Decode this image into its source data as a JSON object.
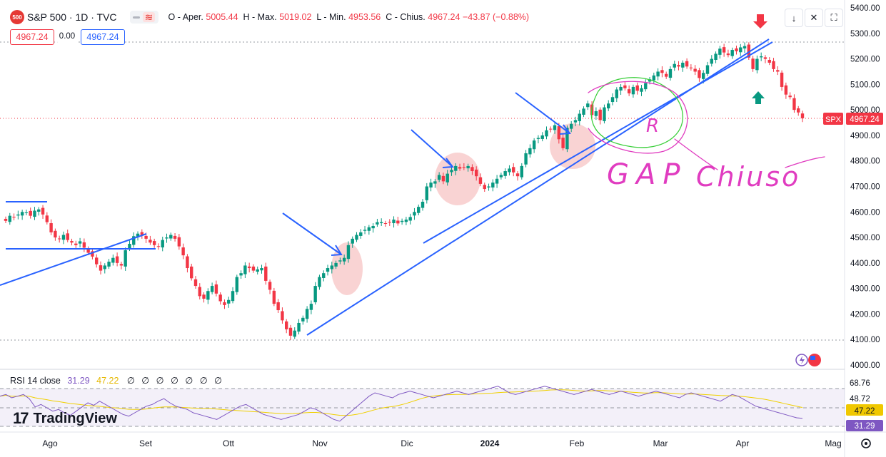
{
  "header": {
    "symbol_badge": "500",
    "symbol": "S&P 500 · 1D · TVC",
    "o_label": "O - Aper.",
    "o_val": "5005.44",
    "h_label": "H - Max.",
    "h_val": "5019.02",
    "l_label": "L - Min.",
    "l_val": "4953.56",
    "c_label": "C - Chius.",
    "c_val": "4967.24",
    "change": "−43.87 (−0.88%)",
    "sell_price": "4967.24",
    "spread": "0.00",
    "buy_price": "4967.24"
  },
  "toolbar": {
    "down_arrow": "↓",
    "collapse": "✕",
    "fullscreen": "⛶"
  },
  "colors": {
    "up": "#089981",
    "down": "#f23645",
    "trendline": "#2962ff",
    "rsi": "#7e57c2",
    "rsi_ma": "#f0d000",
    "annotation_pink": "#e03cc0",
    "annotation_green": "#3ccf3c",
    "highlight": "#f8c8c8"
  },
  "price_label": {
    "ticker": "SPX",
    "value": "4967.24"
  },
  "rsi": {
    "title": "RSI 14 close",
    "value": "31.29",
    "ma_value": "47.22",
    "zeros": "∅ ∅ ∅ ∅ ∅ ∅ ∅",
    "axis_labels": [
      "68.76",
      "48.72"
    ]
  },
  "annotations": {
    "gap_text": "GAP",
    "chiuso_text": "Chiuso",
    "r_text": "R"
  },
  "branding": {
    "name": "TradingView"
  },
  "settings_icon": "gear-icon",
  "chart_data": {
    "type": "candlestick",
    "title": "S&P 500 · 1D · TVC",
    "y_axis_labels": [
      "5400.00",
      "5300.00",
      "5200.00",
      "5100.00",
      "5000.00",
      "4900.00",
      "4800.00",
      "4700.00",
      "4600.00",
      "4500.00",
      "4400.00",
      "4300.00",
      "4200.00",
      "4100.00",
      "4000.00"
    ],
    "ylim": [
      4000,
      5400
    ],
    "x_axis_labels": [
      "Ago",
      "Set",
      "Ott",
      "Nov",
      "Dic",
      "2024",
      "Feb",
      "Mar",
      "Apr",
      "Mag"
    ],
    "last_price": 4967.24,
    "series_closes": [
      4565,
      4585,
      4580,
      4590,
      4600,
      4598,
      4585,
      4605,
      4610,
      4590,
      4560,
      4520,
      4500,
      4495,
      4510,
      4490,
      4480,
      4470,
      4485,
      4460,
      4440,
      4425,
      4395,
      4370,
      4390,
      4405,
      4420,
      4400,
      4390,
      4450,
      4475,
      4505,
      4515,
      4510,
      4495,
      4480,
      4470,
      4465,
      4490,
      4500,
      4510,
      4495,
      4465,
      4430,
      4380,
      4340,
      4310,
      4270,
      4260,
      4290,
      4310,
      4280,
      4250,
      4235,
      4255,
      4290,
      4345,
      4360,
      4390,
      4380,
      4370,
      4375,
      4380,
      4330,
      4295,
      4240,
      4215,
      4175,
      4140,
      4115,
      4135,
      4165,
      4185,
      4220,
      4240,
      4310,
      4345,
      4360,
      4380,
      4390,
      4400,
      4410,
      4420,
      4470,
      4495,
      4510,
      4520,
      4530,
      4540,
      4545,
      4560,
      4560,
      4555,
      4560,
      4570,
      4555,
      4565,
      4570,
      4580,
      4600,
      4620,
      4640,
      4700,
      4715,
      4720,
      4745,
      4720,
      4750,
      4765,
      4780,
      4770,
      4775,
      4780,
      4760,
      4740,
      4710,
      4690,
      4700,
      4715,
      4730,
      4745,
      4760,
      4770,
      4755,
      4740,
      4780,
      4830,
      4850,
      4880,
      4890,
      4900,
      4920,
      4925,
      4940,
      4885,
      4850,
      4930,
      4945,
      4960,
      4985,
      5005,
      5025,
      4980,
      4995,
      4960,
      5010,
      5025,
      5050,
      5080,
      5090,
      5085,
      5065,
      5090,
      5075,
      5085,
      5105,
      5120,
      5135,
      5150,
      5145,
      5130,
      5160,
      5180,
      5170,
      5185,
      5170,
      5165,
      5150,
      5125,
      5145,
      5175,
      5200,
      5220,
      5240,
      5225,
      5215,
      5235,
      5230,
      5245,
      5250,
      5205,
      5160,
      5200,
      5210,
      5200,
      5185,
      5160,
      5150,
      5090,
      5060,
      5050,
      5000,
      4990,
      4967.24
    ],
    "rsi_values": [
      58,
      60,
      56,
      58,
      60,
      55,
      45,
      48,
      44,
      40,
      42,
      38,
      35,
      40,
      45,
      50,
      47,
      52,
      48,
      44,
      40,
      36,
      34,
      38,
      42,
      46,
      48,
      52,
      55,
      50,
      46,
      44,
      42,
      38,
      36,
      34,
      32,
      30,
      34,
      38,
      42,
      46,
      48,
      44,
      40,
      36,
      34,
      32,
      30,
      32,
      34,
      36,
      40,
      44,
      42,
      38,
      34,
      30,
      28,
      34,
      40,
      46,
      52,
      58,
      62,
      60,
      58,
      56,
      60,
      62,
      64,
      62,
      60,
      58,
      56,
      58,
      60,
      62,
      64,
      62,
      60,
      62,
      64,
      66,
      68,
      70,
      66,
      62,
      60,
      62,
      64,
      66,
      68,
      70,
      68,
      66,
      64,
      62,
      60,
      62,
      64,
      66,
      64,
      62,
      60,
      62,
      64,
      62,
      60,
      58,
      60,
      62,
      64,
      62,
      60,
      58,
      56,
      60,
      62,
      60,
      58,
      56,
      54,
      52,
      56,
      60,
      58,
      54,
      50,
      46,
      44,
      42,
      40,
      38,
      36,
      34,
      32,
      31.29
    ]
  }
}
